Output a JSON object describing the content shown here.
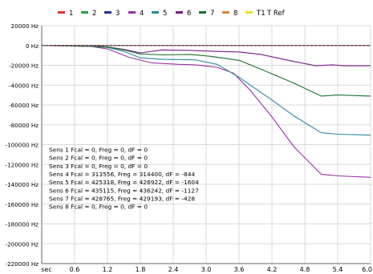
{
  "chart_data": {
    "type": "line",
    "x_label": "sec",
    "x_ticks": [
      0.6,
      1.2,
      1.8,
      2.4,
      3.0,
      3.6,
      4.2,
      4.8,
      5.4,
      6.0
    ],
    "x_tick_labels": [
      "0.6",
      "1.2",
      "1.8",
      "2.4",
      "3.0",
      "3.6",
      "4.2",
      "4.8",
      "5.4",
      "6.0"
    ],
    "xlim": [
      0,
      6.0
    ],
    "y_ticks": [
      20000,
      0,
      -20000,
      -40000,
      -60000,
      -80000,
      -100000,
      -120000,
      -140000,
      -160000,
      -180000,
      -200000,
      -220000
    ],
    "y_tick_labels": [
      "20000 Hz",
      "0 Hz",
      "-20000 Hz",
      "-40000 Hz",
      "-60000 Hz",
      "-80000 Hz",
      "-100000 Hz",
      "-120000 Hz",
      "-140000 Hz",
      "-160000 Hz",
      "-180000 Hz",
      "-200000 Hz",
      "-220000 Hz"
    ],
    "ylim": [
      -220000,
      20000
    ],
    "grid": true,
    "legend_position": "top",
    "legend": [
      {
        "label": "1",
        "color": "#e03030"
      },
      {
        "label": "2",
        "color": "#2e9e3a"
      },
      {
        "label": "3",
        "color": "#20309a"
      },
      {
        "label": "4",
        "color": "#9a30a8"
      },
      {
        "label": "5",
        "color": "#2a8aa0"
      },
      {
        "label": "6",
        "color": "#7a1a8a"
      },
      {
        "label": "7",
        "color": "#1e6e2e"
      },
      {
        "label": "8",
        "color": "#e08030"
      },
      {
        "label": "T1",
        "color": "#f0e020"
      },
      {
        "label": "T Ref",
        "color": null
      }
    ],
    "series": [
      {
        "name": "1",
        "color": "#e03030",
        "x": [
          0,
          0.9,
          1.2,
          1.6,
          2.0,
          2.8,
          3.4,
          4.0,
          5.0,
          6.0
        ],
        "y": [
          0,
          0,
          0,
          0,
          0,
          0,
          0,
          0,
          0,
          0
        ]
      },
      {
        "name": "2",
        "color": "#2e9e3a",
        "x": [
          0,
          0.9,
          1.2,
          1.6,
          2.0,
          2.8,
          3.4,
          4.0,
          5.0,
          6.0
        ],
        "y": [
          0,
          0,
          0,
          0,
          0,
          0,
          0,
          0,
          0,
          0
        ]
      },
      {
        "name": "3",
        "color": "#20309a",
        "x": [
          0,
          0.9,
          1.2,
          1.6,
          2.0,
          2.8,
          3.4,
          4.0,
          5.0,
          6.0
        ],
        "y": [
          0,
          0,
          0,
          0,
          0,
          0,
          0,
          0,
          0,
          0
        ]
      },
      {
        "name": "4",
        "color": "#9a30a8",
        "x": [
          0,
          0.9,
          1.2,
          1.6,
          2.0,
          2.5,
          2.8,
          3.2,
          3.5,
          3.8,
          4.2,
          4.6,
          5.1,
          5.4,
          6.0
        ],
        "y": [
          0,
          -1000,
          -3500,
          -12000,
          -17500,
          -19000,
          -19500,
          -22000,
          -28000,
          -45000,
          -72000,
          -102000,
          -130000,
          -131500,
          -133000
        ]
      },
      {
        "name": "5",
        "color": "#2a8aa0",
        "x": [
          0,
          0.9,
          1.2,
          1.5,
          1.8,
          2.2,
          2.8,
          3.2,
          3.6,
          4.2,
          4.6,
          5.1,
          5.4,
          6.0
        ],
        "y": [
          0,
          -1000,
          -2000,
          -6000,
          -12500,
          -14000,
          -14500,
          -19000,
          -32000,
          -55000,
          -71000,
          -88000,
          -89500,
          -90500
        ]
      },
      {
        "name": "6",
        "color": "#7a1a8a",
        "x": [
          0,
          0.9,
          1.2,
          1.5,
          1.8,
          2.2,
          2.7,
          3.2,
          3.6,
          4.0,
          4.5,
          5.0,
          5.3,
          5.5,
          6.0
        ],
        "y": [
          0,
          -800,
          -1500,
          -4000,
          -7500,
          -4500,
          -5000,
          -6000,
          -6500,
          -9000,
          -15000,
          -20500,
          -19500,
          -20500,
          -20500
        ]
      },
      {
        "name": "7",
        "color": "#1e6e2e",
        "x": [
          0,
          0.9,
          1.2,
          1.5,
          1.8,
          2.2,
          2.7,
          3.1,
          3.6,
          4.0,
          4.6,
          5.1,
          5.4,
          6.0
        ],
        "y": [
          0,
          -800,
          -1500,
          -4500,
          -8500,
          -9500,
          -9000,
          -11000,
          -15000,
          -24000,
          -38000,
          -51000,
          -50000,
          -51000
        ]
      },
      {
        "name": "8",
        "color": "#e08030",
        "x": [
          0,
          0.9,
          1.2,
          1.6,
          2.0,
          2.8,
          3.4,
          4.0,
          5.0,
          6.0
        ],
        "y": [
          0,
          0,
          0,
          0,
          0,
          0,
          0,
          0,
          0,
          0
        ]
      },
      {
        "name": "T Ref",
        "color": "#3a3a90",
        "x": [
          0,
          6.0
        ],
        "y": [
          0,
          0
        ]
      }
    ],
    "annotations": [
      "Sens 1 Fcal = 0, Freg = 0, dF = 0",
      "Sens 2 Fcal = 0, Freg = 0, dF = 0",
      "Sens 3 Fcal = 0, Freg = 0, dF = 0",
      "Sens 4 Fcal = 313556, Freg = 314400, dF = -844",
      "Sens 5 Fcal = 425318, Freg = 426922, dF = -1604",
      "Sens 6 Fcal = 435115, Freg = 436242, dF = -1127",
      "Sens 7 Fcal = 428765, Freg = 429193, dF = -428",
      "Sens 8 Fcal = 0, Freg = 0, dF = 0"
    ],
    "colors": {
      "grid": "#d8d8d8",
      "axis": "#666666",
      "text": "#000000",
      "background": "#ffffff"
    }
  }
}
